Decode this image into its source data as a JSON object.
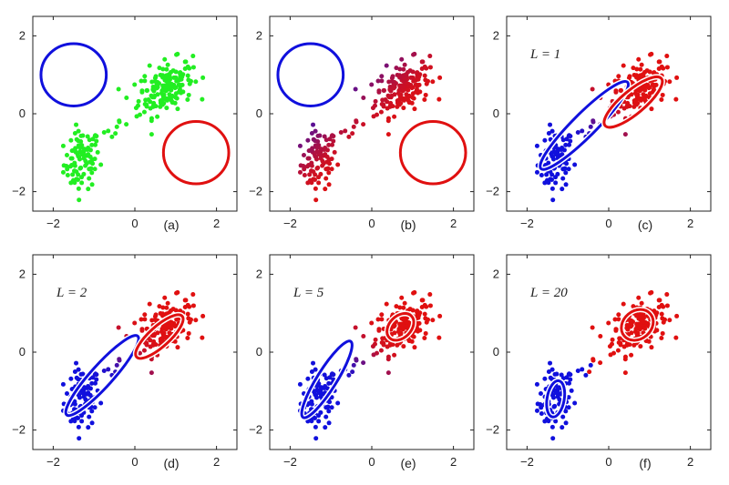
{
  "figure": {
    "colors": {
      "cluster_blue": "#1010dd",
      "cluster_red": "#e01010",
      "points_green": "#22ee22",
      "frame": "#222222"
    }
  },
  "chart_data": [
    {
      "type": "scatter",
      "panel_label": "(a)",
      "iteration_label": "",
      "xlim": [
        -2.5,
        2.5
      ],
      "ylim": [
        -2.5,
        2.5
      ],
      "xticks": [
        -2,
        0,
        2
      ],
      "yticks": [
        -2,
        0,
        2
      ],
      "point_style": "green",
      "ellipses": [
        {
          "cluster": "blue",
          "cx": -1.5,
          "cy": 1.0,
          "rx": 0.8,
          "ry": 0.8,
          "angle": 0
        },
        {
          "cluster": "red",
          "cx": 1.5,
          "cy": -1.0,
          "rx": 0.8,
          "ry": 0.8,
          "angle": 0
        }
      ]
    },
    {
      "type": "scatter",
      "panel_label": "(b)",
      "iteration_label": "",
      "xlim": [
        -2.5,
        2.5
      ],
      "ylim": [
        -2.5,
        2.5
      ],
      "xticks": [
        -2,
        0,
        2
      ],
      "yticks": [
        -2,
        0,
        2
      ],
      "point_style": "gradient_initial",
      "ellipses": [
        {
          "cluster": "blue",
          "cx": -1.5,
          "cy": 1.0,
          "rx": 0.8,
          "ry": 0.8,
          "angle": 0
        },
        {
          "cluster": "red",
          "cx": 1.5,
          "cy": -1.0,
          "rx": 0.8,
          "ry": 0.8,
          "angle": 0
        }
      ]
    },
    {
      "type": "scatter",
      "panel_label": "(c)",
      "iteration_label": "L = 1",
      "xlim": [
        -2.5,
        2.5
      ],
      "ylim": [
        -2.5,
        2.5
      ],
      "xticks": [
        -2,
        0,
        2
      ],
      "yticks": [
        -2,
        0,
        2
      ],
      "point_style": "gradient",
      "ellipses": [
        {
          "cluster": "blue",
          "cx": -0.6,
          "cy": -0.3,
          "rx": 1.5,
          "ry": 0.3,
          "angle": 45
        },
        {
          "cluster": "red",
          "cx": 0.6,
          "cy": 0.3,
          "rx": 0.9,
          "ry": 0.3,
          "angle": 40
        }
      ]
    },
    {
      "type": "scatter",
      "panel_label": "(d)",
      "iteration_label": "L = 2",
      "xlim": [
        -2.5,
        2.5
      ],
      "ylim": [
        -2.5,
        2.5
      ],
      "xticks": [
        -2,
        0,
        2
      ],
      "yticks": [
        -2,
        0,
        2
      ],
      "point_style": "gradient",
      "ellipses": [
        {
          "cluster": "blue",
          "cx": -0.8,
          "cy": -0.6,
          "rx": 1.3,
          "ry": 0.28,
          "angle": 48
        },
        {
          "cluster": "red",
          "cx": 0.6,
          "cy": 0.4,
          "rx": 0.75,
          "ry": 0.26,
          "angle": 42
        }
      ]
    },
    {
      "type": "scatter",
      "panel_label": "(e)",
      "iteration_label": "L = 5",
      "xlim": [
        -2.5,
        2.5
      ],
      "ylim": [
        -2.5,
        2.5
      ],
      "xticks": [
        -2,
        0,
        2
      ],
      "yticks": [
        -2,
        0,
        2
      ],
      "point_style": "gradient",
      "ellipses": [
        {
          "cluster": "blue",
          "cx": -1.1,
          "cy": -0.7,
          "rx": 1.1,
          "ry": 0.25,
          "angle": 58
        },
        {
          "cluster": "red",
          "cx": 0.7,
          "cy": 0.65,
          "rx": 0.38,
          "ry": 0.28,
          "angle": 45
        }
      ]
    },
    {
      "type": "scatter",
      "panel_label": "(f)",
      "iteration_label": "L = 20",
      "xlim": [
        -2.5,
        2.5
      ],
      "ylim": [
        -2.5,
        2.5
      ],
      "xticks": [
        -2,
        0,
        2
      ],
      "yticks": [
        -2,
        0,
        2
      ],
      "point_style": "hard",
      "ellipses": [
        {
          "cluster": "blue",
          "cx": -1.3,
          "cy": -1.2,
          "rx": 0.45,
          "ry": 0.22,
          "angle": 80
        },
        {
          "cluster": "red",
          "cx": 0.7,
          "cy": 0.7,
          "rx": 0.42,
          "ry": 0.36,
          "angle": 40
        }
      ]
    }
  ]
}
